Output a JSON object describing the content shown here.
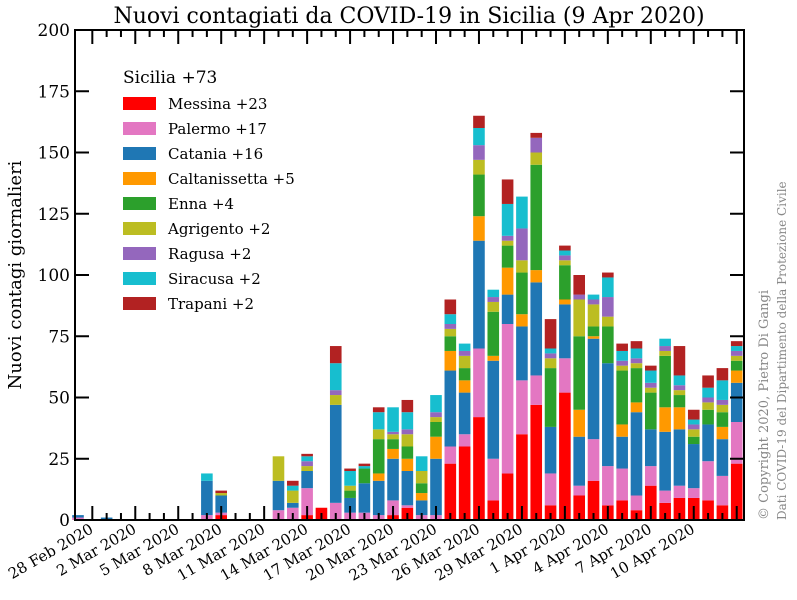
{
  "chart_data": {
    "type": "bar",
    "stacked": true,
    "title": "Nuovi contagiati da COVID-19 in Sicilia (9 Apr 2020)",
    "ylabel": "Nuovi contagi giornalieri",
    "ylim": [
      0,
      200
    ],
    "yticks": [
      "0",
      "25",
      "50",
      "75",
      "100",
      "125",
      "150",
      "175",
      "200"
    ],
    "xticks": [
      "28 Feb 2020",
      "2 Mar 2020",
      "5 Mar 2020",
      "8 Mar 2020",
      "11 Mar 2020",
      "14 Mar 2020",
      "17 Mar 2020",
      "20 Mar 2020",
      "23 Mar 2020",
      "26 Mar 2020",
      "29 Mar 2020",
      "1 Apr 2020",
      "4 Apr 2020",
      "7 Apr 2020",
      "10 Apr 2020"
    ],
    "legend_title": "Sicilia  +73",
    "legend_position": "upper-left",
    "credits": [
      "© Copyright 2020, Pietro Di Gangi",
      "Dati COVID-19 del Dipartimento della Protezione Civile"
    ],
    "series": [
      {
        "name": "Messina  +23",
        "color": "#ff0000",
        "values": [
          0,
          0,
          0,
          0,
          0,
          0,
          0,
          0,
          0,
          0,
          2,
          0,
          0,
          0,
          0,
          0,
          2,
          5,
          0,
          0,
          0,
          0,
          2,
          5,
          0,
          0,
          23,
          30,
          42,
          8,
          19,
          35,
          47,
          6,
          52,
          10,
          16,
          6,
          8,
          4,
          14,
          7,
          9,
          9,
          8,
          6,
          23
        ]
      },
      {
        "name": "Palermo  +17",
        "color": "#e377c2",
        "values": [
          1,
          0,
          0,
          0,
          0,
          0,
          0,
          0,
          0,
          2,
          1,
          0,
          0,
          0,
          4,
          5,
          11,
          0,
          7,
          3,
          3,
          2,
          6,
          1,
          2,
          2,
          7,
          5,
          28,
          17,
          61,
          22,
          12,
          13,
          14,
          4,
          17,
          16,
          13,
          6,
          8,
          5,
          5,
          4,
          16,
          12,
          17
        ]
      },
      {
        "name": "Catania  +16",
        "color": "#1f77b4",
        "values": [
          1,
          0,
          1,
          0,
          0,
          0,
          0,
          0,
          0,
          14,
          7,
          0,
          0,
          0,
          12,
          2,
          7,
          0,
          40,
          6,
          12,
          14,
          17,
          14,
          6,
          23,
          31,
          17,
          44,
          40,
          12,
          22,
          38,
          19,
          22,
          20,
          41,
          42,
          13,
          34,
          15,
          24,
          23,
          18,
          15,
          15,
          16
        ]
      },
      {
        "name": "Caltanissetta  +5",
        "color": "#ff9900",
        "values": [
          0,
          0,
          0,
          0,
          0,
          0,
          0,
          0,
          0,
          0,
          0,
          0,
          0,
          0,
          0,
          0,
          0,
          0,
          0,
          0,
          0,
          3,
          4,
          5,
          3,
          9,
          8,
          5,
          10,
          2,
          11,
          5,
          5,
          0,
          2,
          11,
          1,
          0,
          5,
          4,
          0,
          10,
          9,
          0,
          0,
          5,
          5
        ]
      },
      {
        "name": "Enna  +4",
        "color": "#2ca02c",
        "values": [
          0,
          0,
          0,
          0,
          0,
          0,
          0,
          0,
          0,
          0,
          0,
          0,
          0,
          0,
          0,
          0,
          0,
          0,
          0,
          3,
          6,
          14,
          4,
          5,
          4,
          6,
          6,
          5,
          17,
          18,
          9,
          17,
          43,
          24,
          14,
          30,
          4,
          15,
          22,
          14,
          15,
          21,
          5,
          3,
          6,
          6,
          4
        ]
      },
      {
        "name": "Agrigento  +2",
        "color": "#bcbd22",
        "values": [
          0,
          0,
          0,
          0,
          0,
          0,
          0,
          0,
          0,
          0,
          1,
          0,
          0,
          0,
          10,
          5,
          2,
          0,
          4,
          2,
          0,
          4,
          2,
          5,
          5,
          2,
          3,
          5,
          6,
          4,
          2,
          5,
          5,
          4,
          2,
          15,
          9,
          4,
          2,
          2,
          2,
          2,
          2,
          3,
          3,
          3,
          2
        ]
      },
      {
        "name": "Ragusa  +2",
        "color": "#9467bd",
        "values": [
          0,
          0,
          0,
          0,
          0,
          0,
          0,
          0,
          0,
          0,
          0,
          0,
          0,
          0,
          0,
          0,
          2,
          0,
          2,
          0,
          0,
          0,
          1,
          2,
          0,
          2,
          2,
          2,
          6,
          2,
          2,
          13,
          6,
          2,
          2,
          2,
          2,
          8,
          2,
          2,
          2,
          2,
          2,
          2,
          2,
          2,
          2
        ]
      },
      {
        "name": "Siracusa  +2",
        "color": "#17becf",
        "values": [
          0,
          0,
          0,
          0,
          0,
          0,
          0,
          0,
          0,
          3,
          0,
          0,
          0,
          0,
          0,
          2,
          2,
          0,
          11,
          6,
          1,
          7,
          10,
          7,
          6,
          7,
          4,
          3,
          7,
          3,
          13,
          13,
          0,
          2,
          2,
          0,
          2,
          8,
          4,
          4,
          5,
          3,
          4,
          2,
          4,
          8,
          2
        ]
      },
      {
        "name": "Trapani  +2",
        "color": "#b22222",
        "values": [
          0,
          0,
          0,
          0,
          0,
          0,
          0,
          0,
          0,
          0,
          1,
          0,
          0,
          0,
          0,
          2,
          1,
          0,
          7,
          1,
          1,
          2,
          0,
          5,
          0,
          0,
          6,
          0,
          5,
          0,
          10,
          0,
          2,
          12,
          2,
          8,
          0,
          2,
          3,
          3,
          2,
          0,
          12,
          4,
          5,
          5,
          2
        ]
      }
    ]
  }
}
